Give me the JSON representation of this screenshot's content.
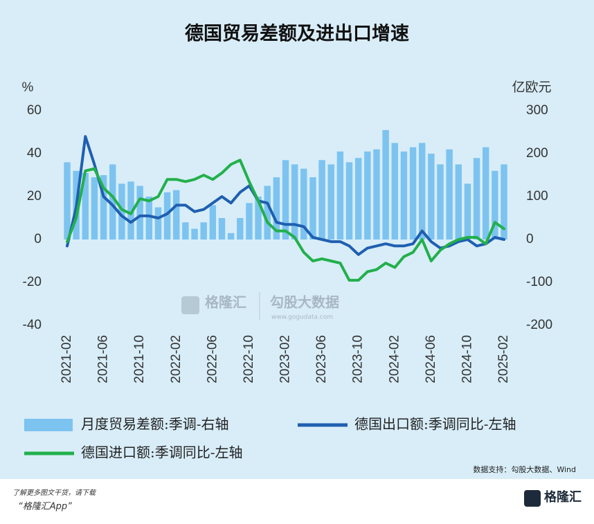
{
  "chart_data": {
    "type": "bar",
    "title": "德国贸易差额及进出口增速",
    "ylabel": "%",
    "y2label": "亿欧元",
    "categories": [
      "2021-02",
      null,
      null,
      null,
      "2021-06",
      null,
      null,
      null,
      "2021-10",
      null,
      null,
      null,
      "2022-02",
      null,
      null,
      null,
      "2022-06",
      null,
      null,
      null,
      "2022-10",
      null,
      null,
      null,
      "2023-02",
      null,
      null,
      null,
      "2023-06",
      null,
      null,
      null,
      "2023-10",
      null,
      null,
      null,
      "2024-02",
      null,
      null,
      null,
      "2024-06",
      null,
      null,
      null,
      "2024-10",
      null,
      null,
      null,
      "2025-02"
    ],
    "series": [
      {
        "name": "月度贸易差额:季调-右轴",
        "type": "bar",
        "axis": "y2",
        "color": "#7cc3f0",
        "values": [
          180,
          160,
          155,
          145,
          150,
          175,
          130,
          135,
          125,
          100,
          75,
          110,
          115,
          40,
          25,
          40,
          80,
          50,
          15,
          50,
          85,
          100,
          125,
          145,
          185,
          175,
          165,
          145,
          185,
          175,
          205,
          180,
          190,
          205,
          210,
          255,
          225,
          205,
          215,
          225,
          200,
          175,
          210,
          175,
          130,
          190,
          215,
          160,
          175
        ]
      },
      {
        "name": "德国出口额:季调同比-左轴",
        "type": "line",
        "color": "#1f5fb0",
        "values": [
          -3,
          15,
          48,
          35,
          20,
          16,
          11,
          8,
          11,
          11,
          10,
          12,
          16,
          16,
          13,
          14,
          17,
          20,
          17,
          22,
          25,
          18,
          17,
          8,
          7,
          7,
          6,
          1,
          0,
          -1,
          -1,
          -3,
          -7,
          -4,
          -3,
          -2,
          -3,
          -3,
          -2,
          4,
          -1,
          -4,
          -3,
          -1,
          0,
          -3,
          -2,
          1,
          0
        ]
      },
      {
        "name": "德国进口额:季调同比-左轴",
        "type": "line",
        "color": "#22b04b",
        "values": [
          -1,
          10,
          32,
          33,
          24,
          20,
          14,
          12,
          19,
          18,
          20,
          28,
          28,
          27,
          28,
          30,
          28,
          31,
          35,
          37,
          27,
          18,
          8,
          4,
          4,
          1,
          -6,
          -10,
          -9,
          -10,
          -11,
          -19,
          -19,
          -15,
          -14,
          -11,
          -13,
          -8,
          -6,
          0,
          -10,
          -5,
          -2,
          0,
          1,
          1,
          -2,
          8,
          5
        ]
      }
    ],
    "ylim": [
      -40,
      60
    ],
    "yticks": [
      -40,
      -20,
      0,
      20,
      40,
      60
    ],
    "y2lim": [
      -200,
      300
    ],
    "y2ticks": [
      -200,
      -100,
      0,
      100,
      200,
      300
    ],
    "grid": false,
    "source": "数据支持：勾股大数据、Wind"
  },
  "watermark": {
    "brand": "格隆汇",
    "site": "勾股大数据",
    "url": "www.gogudata.com"
  },
  "footer": {
    "line1": "了解更多图文干货，请下载",
    "line2": "“格隆汇App”",
    "logo": "格隆汇"
  }
}
